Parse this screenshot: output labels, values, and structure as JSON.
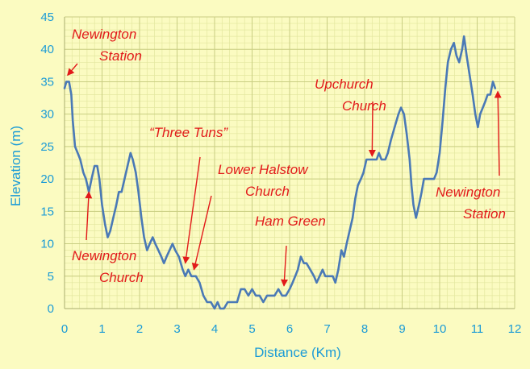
{
  "chart_data": {
    "type": "line",
    "xlabel": "Distance (Km)",
    "ylabel": "Elevation (m)",
    "xlim": [
      0,
      12
    ],
    "ylim": [
      0,
      45
    ],
    "x_ticks": [
      "0",
      "1",
      "2",
      "3",
      "4",
      "5",
      "6",
      "7",
      "8",
      "9",
      "10",
      "11",
      "12"
    ],
    "y_ticks": [
      "0",
      "5",
      "10",
      "15",
      "20",
      "25",
      "30",
      "35",
      "40",
      "45"
    ],
    "grid": true,
    "legend": "none",
    "series": [
      {
        "color": "#4a79b6",
        "points": [
          [
            0.0,
            34
          ],
          [
            0.05,
            35
          ],
          [
            0.12,
            35
          ],
          [
            0.18,
            33
          ],
          [
            0.22,
            29
          ],
          [
            0.28,
            25
          ],
          [
            0.35,
            24
          ],
          [
            0.42,
            23
          ],
          [
            0.5,
            21
          ],
          [
            0.57,
            20
          ],
          [
            0.65,
            18
          ],
          [
            0.72,
            20
          ],
          [
            0.8,
            22
          ],
          [
            0.87,
            22
          ],
          [
            0.93,
            20
          ],
          [
            1.0,
            16
          ],
          [
            1.08,
            13
          ],
          [
            1.15,
            11
          ],
          [
            1.22,
            12
          ],
          [
            1.3,
            14
          ],
          [
            1.38,
            16
          ],
          [
            1.45,
            18
          ],
          [
            1.52,
            18
          ],
          [
            1.6,
            20
          ],
          [
            1.68,
            22
          ],
          [
            1.76,
            24
          ],
          [
            1.82,
            23
          ],
          [
            1.9,
            21
          ],
          [
            1.97,
            18
          ],
          [
            2.05,
            14
          ],
          [
            2.12,
            11
          ],
          [
            2.2,
            9
          ],
          [
            2.27,
            10
          ],
          [
            2.35,
            11
          ],
          [
            2.42,
            10
          ],
          [
            2.5,
            9
          ],
          [
            2.58,
            8
          ],
          [
            2.65,
            7
          ],
          [
            2.72,
            8
          ],
          [
            2.8,
            9
          ],
          [
            2.88,
            10
          ],
          [
            2.95,
            9
          ],
          [
            3.05,
            8
          ],
          [
            3.15,
            6
          ],
          [
            3.22,
            5
          ],
          [
            3.3,
            6
          ],
          [
            3.38,
            5
          ],
          [
            3.5,
            5
          ],
          [
            3.6,
            4
          ],
          [
            3.7,
            2
          ],
          [
            3.8,
            1
          ],
          [
            3.9,
            1
          ],
          [
            4.0,
            0
          ],
          [
            4.08,
            1
          ],
          [
            4.15,
            0
          ],
          [
            4.25,
            0
          ],
          [
            4.35,
            1
          ],
          [
            4.5,
            1
          ],
          [
            4.6,
            1
          ],
          [
            4.7,
            3
          ],
          [
            4.8,
            3
          ],
          [
            4.9,
            2
          ],
          [
            5.0,
            3
          ],
          [
            5.1,
            2
          ],
          [
            5.2,
            2
          ],
          [
            5.3,
            1
          ],
          [
            5.4,
            2
          ],
          [
            5.5,
            2
          ],
          [
            5.6,
            2
          ],
          [
            5.7,
            3
          ],
          [
            5.8,
            2
          ],
          [
            5.9,
            2
          ],
          [
            6.0,
            3
          ],
          [
            6.08,
            4
          ],
          [
            6.15,
            5
          ],
          [
            6.22,
            6
          ],
          [
            6.3,
            8
          ],
          [
            6.38,
            7
          ],
          [
            6.45,
            7
          ],
          [
            6.55,
            6
          ],
          [
            6.65,
            5
          ],
          [
            6.72,
            4
          ],
          [
            6.8,
            5
          ],
          [
            6.88,
            6
          ],
          [
            6.95,
            5
          ],
          [
            7.05,
            5
          ],
          [
            7.15,
            5
          ],
          [
            7.22,
            4
          ],
          [
            7.3,
            6
          ],
          [
            7.38,
            9
          ],
          [
            7.45,
            8
          ],
          [
            7.52,
            10
          ],
          [
            7.6,
            12
          ],
          [
            7.68,
            14
          ],
          [
            7.75,
            17
          ],
          [
            7.82,
            19
          ],
          [
            7.9,
            20
          ],
          [
            7.97,
            21
          ],
          [
            8.05,
            23
          ],
          [
            8.15,
            23
          ],
          [
            8.25,
            23
          ],
          [
            8.32,
            23
          ],
          [
            8.38,
            24
          ],
          [
            8.45,
            23
          ],
          [
            8.55,
            23
          ],
          [
            8.62,
            24
          ],
          [
            8.7,
            26
          ],
          [
            8.8,
            28
          ],
          [
            8.9,
            30
          ],
          [
            8.97,
            31
          ],
          [
            9.05,
            30
          ],
          [
            9.12,
            27
          ],
          [
            9.2,
            23
          ],
          [
            9.25,
            19
          ],
          [
            9.3,
            16
          ],
          [
            9.37,
            14
          ],
          [
            9.45,
            16
          ],
          [
            9.52,
            18
          ],
          [
            9.58,
            20
          ],
          [
            9.65,
            20
          ],
          [
            9.75,
            20
          ],
          [
            9.85,
            20
          ],
          [
            9.92,
            21
          ],
          [
            10.0,
            24
          ],
          [
            10.08,
            29
          ],
          [
            10.15,
            34
          ],
          [
            10.22,
            38
          ],
          [
            10.3,
            40
          ],
          [
            10.38,
            41
          ],
          [
            10.45,
            39
          ],
          [
            10.52,
            38
          ],
          [
            10.6,
            40
          ],
          [
            10.65,
            42
          ],
          [
            10.72,
            39
          ],
          [
            10.8,
            36
          ],
          [
            10.88,
            33
          ],
          [
            10.95,
            30
          ],
          [
            11.02,
            28
          ],
          [
            11.08,
            30
          ],
          [
            11.15,
            31
          ],
          [
            11.22,
            32
          ],
          [
            11.28,
            33
          ],
          [
            11.35,
            33
          ],
          [
            11.42,
            35
          ],
          [
            11.48,
            34
          ]
        ]
      }
    ],
    "annotations": [
      {
        "lines": [
          "Newington",
          "Station"
        ],
        "target": [
          0.08,
          36
        ]
      },
      {
        "lines": [
          "Newington",
          "Church"
        ],
        "target": [
          0.65,
          18
        ]
      },
      {
        "lines": [
          "“Three Tuns”"
        ],
        "target": [
          3.22,
          7
        ]
      },
      {
        "lines": [
          "Lower Halstow",
          "Church"
        ],
        "target": [
          3.45,
          6
        ]
      },
      {
        "lines": [
          "Ham Green"
        ],
        "target": [
          5.85,
          3.5
        ]
      },
      {
        "lines": [
          "Upchurch",
          "Church"
        ],
        "target": [
          8.2,
          23.5
        ]
      },
      {
        "lines": [
          "Newington",
          "Station"
        ],
        "target": [
          11.55,
          33.5
        ]
      }
    ]
  }
}
